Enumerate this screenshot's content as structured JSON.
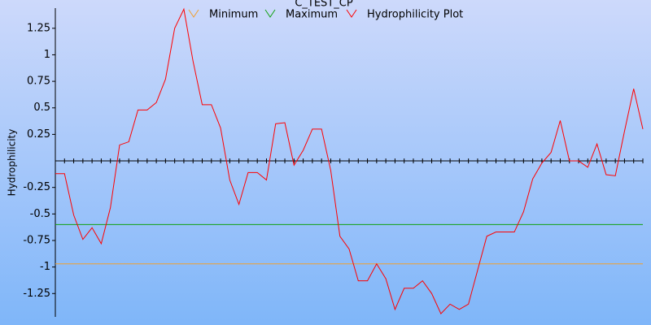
{
  "chart_data": {
    "type": "line",
    "title": "C_TEST_CP",
    "y_label": "Hydrophilicity",
    "ylim": [
      -1.47,
      1.44
    ],
    "yticks": [
      1.25,
      1,
      0.75,
      0.5,
      0.25,
      -0.25,
      -0.5,
      -0.75,
      -1,
      -1.25
    ],
    "series": [
      {
        "name": "Minimum",
        "color": "#f0a030",
        "values": [
          -0.97
        ]
      },
      {
        "name": "Maximum",
        "color": "#10a010",
        "values": [
          -0.6
        ]
      },
      {
        "name": "Hydrophilicity Plot",
        "color": "#ff0000",
        "values": [
          -0.12,
          -0.12,
          -0.51,
          -0.74,
          -0.63,
          -0.78,
          -0.44,
          0.15,
          0.18,
          0.48,
          0.48,
          0.55,
          0.77,
          1.25,
          1.43,
          0.94,
          0.53,
          0.53,
          0.31,
          -0.18,
          -0.41,
          -0.11,
          -0.11,
          -0.18,
          0.35,
          0.36,
          -0.04,
          0.1,
          0.3,
          0.3,
          -0.09,
          -0.71,
          -0.83,
          -1.13,
          -1.13,
          -0.97,
          -1.11,
          -1.4,
          -1.2,
          -1.2,
          -1.13,
          -1.25,
          -1.44,
          -1.35,
          -1.4,
          -1.35,
          -1.03,
          -0.71,
          -0.67,
          -0.67,
          -0.67,
          -0.48,
          -0.17,
          -0.02,
          0.08,
          0.38,
          0,
          0,
          -0.06,
          0.16,
          -0.13,
          -0.14,
          0.28,
          0.68,
          0.3
        ]
      }
    ]
  }
}
